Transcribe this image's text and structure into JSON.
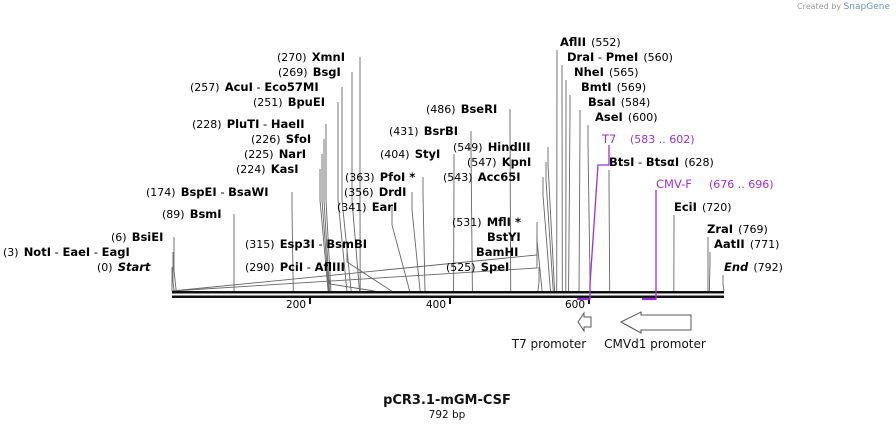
{
  "credit": {
    "prefix": "Created by",
    "brand": "SnapGene"
  },
  "map": {
    "title": "pCR3.1-mGM-CSF",
    "length_label": "792 bp",
    "length": 792,
    "ticks": [
      "200",
      "400",
      "600"
    ]
  },
  "sites": [
    {
      "pos": "(3)",
      "names": [
        "NotI",
        "EaeI",
        "EagI"
      ]
    },
    {
      "pos": "(0)",
      "names": [
        "Start"
      ],
      "italic": true
    },
    {
      "pos": "(6)",
      "names": [
        "BsiEI"
      ]
    },
    {
      "pos": "(89)",
      "names": [
        "BsmI"
      ]
    },
    {
      "pos": "(174)",
      "names": [
        "BspEI",
        "BsaWI"
      ]
    },
    {
      "pos": "(224)",
      "names": [
        "KasI"
      ]
    },
    {
      "pos": "(225)",
      "names": [
        "NarI"
      ]
    },
    {
      "pos": "(226)",
      "names": [
        "SfoI"
      ]
    },
    {
      "pos": "(228)",
      "names": [
        "PluTI",
        "HaeII"
      ]
    },
    {
      "pos": "(251)",
      "names": [
        "BpuEI"
      ]
    },
    {
      "pos": "(257)",
      "names": [
        "AcuI",
        "Eco57MI"
      ]
    },
    {
      "pos": "(269)",
      "names": [
        "BsgI"
      ]
    },
    {
      "pos": "(270)",
      "names": [
        "XmnI"
      ]
    },
    {
      "pos": "(290)",
      "names": [
        "PciI",
        "AflIII"
      ]
    },
    {
      "pos": "(315)",
      "names": [
        "Esp3I",
        "BsmBI"
      ]
    },
    {
      "pos": "(341)",
      "names": [
        "EarI"
      ]
    },
    {
      "pos": "(356)",
      "names": [
        "DrdI"
      ]
    },
    {
      "pos": "(363)",
      "names": [
        "PfoI *"
      ]
    },
    {
      "pos": "(404)",
      "names": [
        "StyI"
      ]
    },
    {
      "pos": "(431)",
      "names": [
        "BsrBI"
      ]
    },
    {
      "pos": "(486)",
      "names": [
        "BseRI"
      ]
    },
    {
      "pos": "(549)",
      "names": [
        "HindIII"
      ]
    },
    {
      "pos": "(547)",
      "names": [
        "KpnI"
      ]
    },
    {
      "pos": "(543)",
      "names": [
        "Acc65I"
      ]
    },
    {
      "pos": "(531)",
      "names": [
        "MflI *"
      ]
    },
    {
      "pos": "",
      "names": [
        "BstYI"
      ]
    },
    {
      "pos": "",
      "names": [
        "BamHI"
      ]
    },
    {
      "pos": "(525)",
      "names": [
        "SpeI"
      ]
    },
    {
      "pos": "(552)",
      "names": [
        "AflII"
      ]
    },
    {
      "pos": "(560)",
      "names": [
        "DraI",
        "PmeI"
      ]
    },
    {
      "pos": "(565)",
      "names": [
        "NheI"
      ]
    },
    {
      "pos": "(569)",
      "names": [
        "BmtI"
      ]
    },
    {
      "pos": "(584)",
      "names": [
        "BsaI"
      ]
    },
    {
      "pos": "(600)",
      "names": [
        "AseI"
      ]
    },
    {
      "pos": "(628)",
      "names": [
        "BtsI",
        "BtsαI"
      ]
    },
    {
      "pos": "(720)",
      "names": [
        "EciI"
      ]
    },
    {
      "pos": "(769)",
      "names": [
        "ZraI"
      ]
    },
    {
      "pos": "(771)",
      "names": [
        "AatII"
      ]
    },
    {
      "pos": "(792)",
      "names": [
        "End"
      ],
      "italic": true
    }
  ],
  "primers": [
    {
      "name": "T7",
      "range": "(583 .. 602)",
      "color": "#9b30d9"
    },
    {
      "name": "CMV-F",
      "range": "(676 .. 696)",
      "color": "#9b30d9"
    }
  ],
  "features": [
    {
      "name": "T7 promoter",
      "direction": "reverse"
    },
    {
      "name": "CMVd1 promoter",
      "direction": "reverse"
    }
  ]
}
